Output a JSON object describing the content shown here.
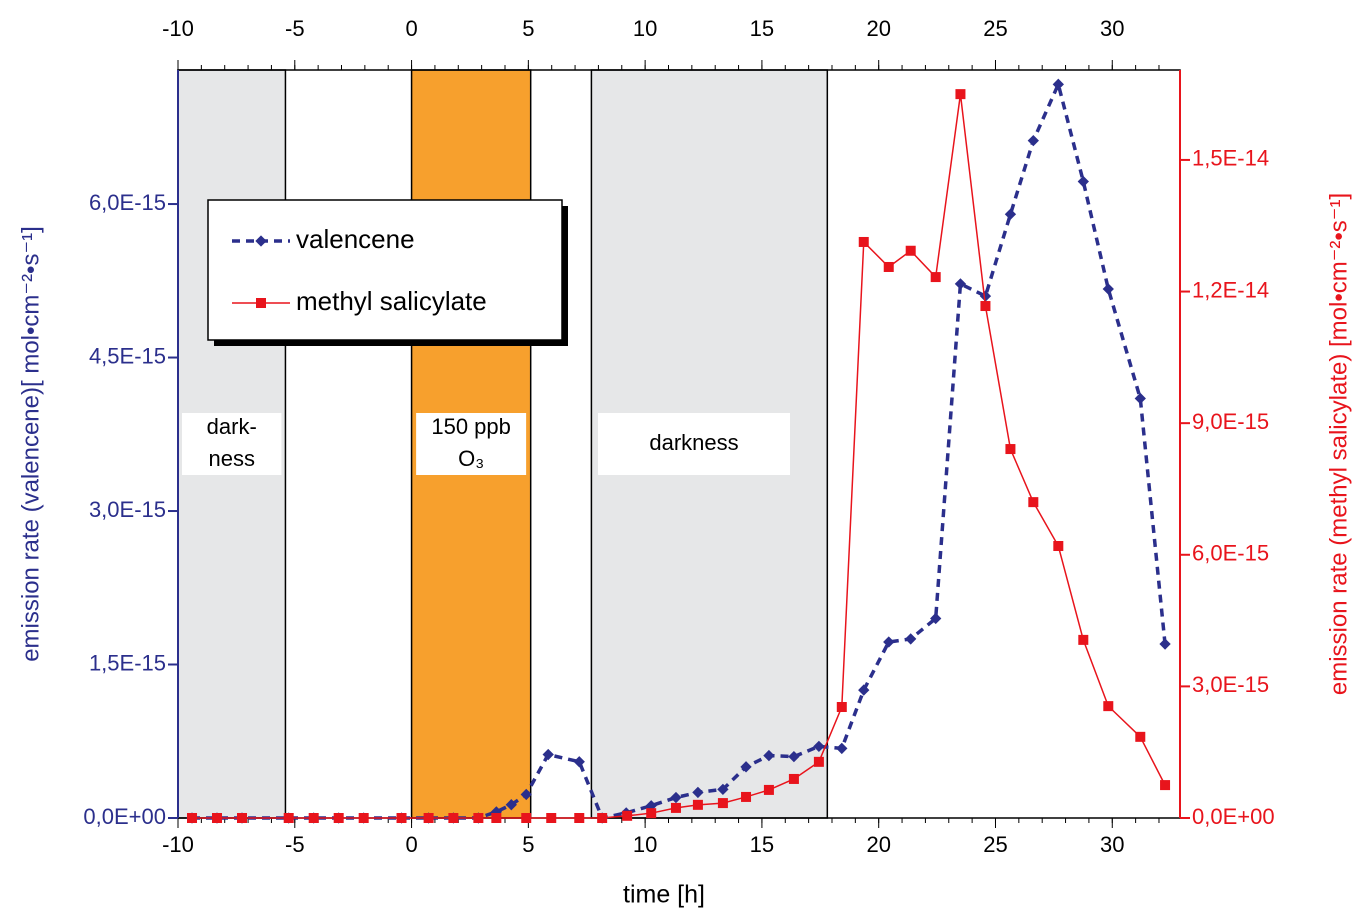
{
  "chart_data": {
    "type": "line",
    "xlabel": "time [h]",
    "ylabel": "emission rate (valencene)[ mol•cm⁻²•s⁻¹]",
    "y2label": "emission rate (methyl salicylate) [mol•cm⁻²•s⁻¹]",
    "xlim": [
      -10,
      32.9
    ],
    "xticks": [
      -10,
      -5,
      0,
      5,
      10,
      15,
      20,
      25,
      30
    ],
    "xminorticks": [
      -10,
      -9,
      -8,
      -7,
      -6,
      -5,
      -4,
      -3,
      -2,
      -1,
      0,
      1,
      2,
      3,
      4,
      5,
      6,
      7,
      8,
      9,
      10,
      11,
      12,
      13,
      14,
      15,
      16,
      17,
      18,
      19,
      20,
      21,
      22,
      23,
      24,
      25,
      26,
      27,
      28,
      29,
      30,
      31,
      32
    ],
    "ylim": [
      0,
      7.31e-15
    ],
    "yticks": [
      {
        "value": 0,
        "label": "0,0E+00"
      },
      {
        "value": 1.5e-15,
        "label": "1,5E-15"
      },
      {
        "value": 3e-15,
        "label": "3,0E-15"
      },
      {
        "value": 4.5e-15,
        "label": "4,5E-15"
      },
      {
        "value": 6e-15,
        "label": "6,0E-15"
      }
    ],
    "y2lim": [
      0,
      1.705e-14
    ],
    "y2ticks": [
      {
        "value": 0,
        "label": "0,0E+00"
      },
      {
        "value": 3e-15,
        "label": "3,0E-15"
      },
      {
        "value": 6e-15,
        "label": "6,0E-15"
      },
      {
        "value": 9e-15,
        "label": "9,0E-15"
      },
      {
        "value": 1.2e-14,
        "label": "1,2E-14"
      },
      {
        "value": 1.5e-14,
        "label": "1,5E-14"
      }
    ],
    "regions": [
      {
        "label": [
          "dark-",
          "ness"
        ],
        "x": [
          -10,
          -5.4
        ],
        "color": "#e6e7e8"
      },
      {
        "label": [
          "150 ppb",
          "O₃"
        ],
        "x": [
          0,
          5.1
        ],
        "color": "#f7a02d"
      },
      {
        "label": [
          "darkness"
        ],
        "x": [
          7.7,
          17.8
        ],
        "color": "#e6e7e8"
      }
    ],
    "series": [
      {
        "name": "valencene",
        "color": "#2b2f8c",
        "axis": "y",
        "x": [
          -9.4,
          -8.33,
          -7.26,
          -5.26,
          -4.19,
          -3.12,
          -2.05,
          -0.43,
          0.73,
          1.79,
          2.86,
          3.63,
          4.27,
          4.91,
          5.85,
          7.18,
          8.16,
          9.19,
          10.26,
          11.32,
          12.26,
          13.33,
          14.32,
          15.3,
          16.37,
          17.44,
          18.42,
          19.36,
          20.43,
          21.37,
          22.44,
          23.5,
          24.57,
          25.64,
          26.62,
          27.69,
          28.76,
          29.83,
          31.2,
          32.26
        ],
        "values": [
          0,
          0,
          0,
          0,
          0,
          0,
          0,
          0,
          0,
          0,
          0,
          6e-17,
          1.3e-16,
          2.3e-16,
          6.2e-16,
          5.5e-16,
          0,
          5e-17,
          1.2e-16,
          2e-16,
          2.5e-16,
          2.8e-16,
          5e-16,
          6.1e-16,
          6e-16,
          7e-16,
          6.8e-16,
          1.25e-15,
          1.72e-15,
          1.75e-15,
          1.95e-15,
          5.22e-15,
          5.1e-15,
          5.9e-15,
          6.62e-15,
          7.17e-15,
          6.22e-15,
          5.17e-15,
          4.1e-15,
          1.7e-15
        ]
      },
      {
        "name": "methyl salicylate",
        "color": "#e8141c",
        "axis": "y2",
        "x": [
          -9.4,
          -8.33,
          -7.26,
          -5.26,
          -4.19,
          -3.12,
          -2.05,
          -0.43,
          0.73,
          1.79,
          2.86,
          3.63,
          4.91,
          5.98,
          7.18,
          8.16,
          9.23,
          10.26,
          11.32,
          12.26,
          13.33,
          14.32,
          15.3,
          16.37,
          17.44,
          18.42,
          19.36,
          20.43,
          21.37,
          22.44,
          23.5,
          24.57,
          25.64,
          26.62,
          27.69,
          28.76,
          29.83,
          31.2,
          32.26
        ],
        "values": [
          0,
          0,
          0,
          0,
          0,
          0,
          0,
          0,
          0,
          0,
          0,
          0,
          0,
          0,
          0,
          0,
          5e-17,
          1.1e-16,
          2.3e-16,
          3e-16,
          3.4e-16,
          4.8e-16,
          6.4e-16,
          8.9e-16,
          1.28e-15,
          2.53e-15,
          1.313e-14,
          1.256e-14,
          1.293e-14,
          1.233e-14,
          1.65e-14,
          1.167e-14,
          8.41e-15,
          7.2e-15,
          6.2e-15,
          4.06e-15,
          2.55e-15,
          1.85e-15,
          7.5e-16
        ]
      }
    ]
  }
}
